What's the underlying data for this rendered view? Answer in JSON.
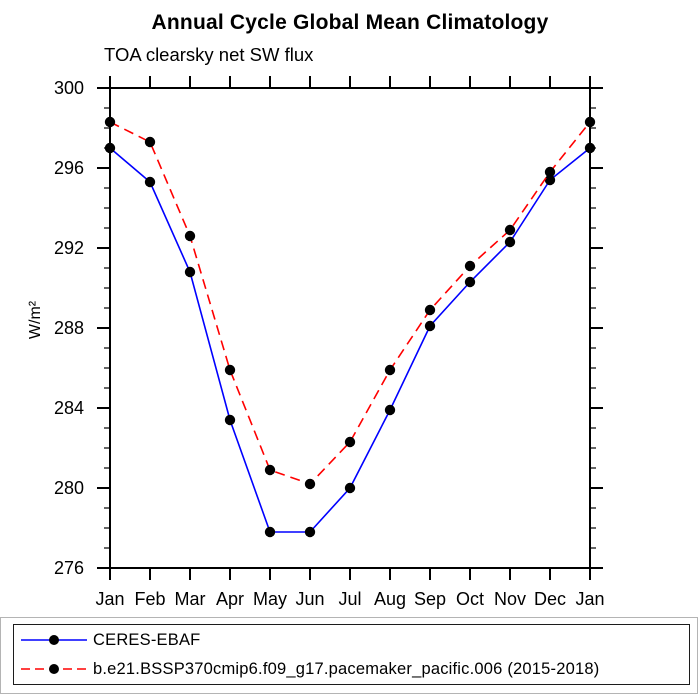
{
  "header": {
    "title": "Annual Cycle Global Mean Climatology",
    "subtitle": "TOA clearsky net SW flux"
  },
  "legend": {
    "entries": [
      {
        "label": "CERES-EBAF",
        "color": "#0000ff",
        "style": "solid",
        "marker": "black-dot"
      },
      {
        "label": "b.e21.BSSP370cmip6.f09_g17.pacemaker_pacific.006 (2015-2018)",
        "color": "#ff0000",
        "style": "dashed",
        "marker": "black-dot"
      }
    ]
  },
  "chart_data": {
    "type": "line",
    "title": "Annual Cycle Global Mean Climatology",
    "subtitle": "TOA clearsky net SW flux",
    "xlabel": "",
    "ylabel": "W/m²",
    "categories": [
      "Jan",
      "Feb",
      "Mar",
      "Apr",
      "May",
      "Jun",
      "Jul",
      "Aug",
      "Sep",
      "Oct",
      "Nov",
      "Dec",
      "Jan"
    ],
    "ylim": [
      276,
      300
    ],
    "yticks": [
      276,
      280,
      284,
      288,
      292,
      296,
      300
    ],
    "minor_tick_interval": 1,
    "grid": false,
    "legend_position": "bottom",
    "axis_color": "#000000",
    "marker_color": "#000000",
    "series": [
      {
        "name": "CERES-EBAF",
        "color": "#0000ff",
        "line_style": "solid",
        "marker": "circle",
        "values": [
          297.0,
          295.3,
          290.8,
          283.4,
          277.8,
          277.8,
          280.0,
          283.9,
          288.1,
          290.3,
          292.3,
          295.4,
          297.0
        ]
      },
      {
        "name": "b.e21.BSSP370cmip6.f09_g17.pacemaker_pacific.006 (2015-2018)",
        "color": "#ff0000",
        "line_style": "dashed",
        "marker": "circle",
        "values": [
          298.3,
          297.3,
          292.6,
          285.9,
          280.9,
          280.2,
          282.3,
          285.9,
          288.9,
          291.1,
          292.9,
          295.8,
          298.3
        ]
      }
    ]
  }
}
